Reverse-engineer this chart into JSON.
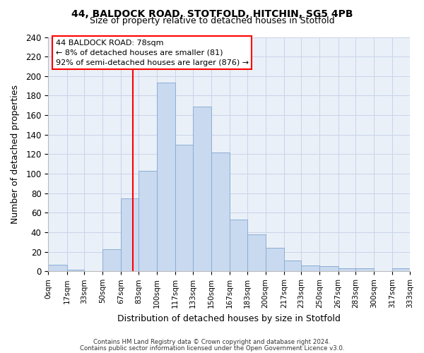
{
  "title_line1": "44, BALDOCK ROAD, STOTFOLD, HITCHIN, SG5 4PB",
  "title_line2": "Size of property relative to detached houses in Stotfold",
  "xlabel": "Distribution of detached houses by size in Stotfold",
  "ylabel": "Number of detached properties",
  "bin_labels": [
    "0sqm",
    "17sqm",
    "33sqm",
    "50sqm",
    "67sqm",
    "83sqm",
    "100sqm",
    "117sqm",
    "133sqm",
    "150sqm",
    "167sqm",
    "183sqm",
    "200sqm",
    "217sqm",
    "233sqm",
    "250sqm",
    "267sqm",
    "283sqm",
    "300sqm",
    "317sqm",
    "333sqm"
  ],
  "bin_edges": [
    0,
    17,
    33,
    50,
    67,
    83,
    100,
    117,
    133,
    150,
    167,
    183,
    200,
    217,
    233,
    250,
    267,
    283,
    300,
    317,
    333
  ],
  "bar_heights": [
    7,
    2,
    0,
    23,
    75,
    103,
    193,
    130,
    169,
    122,
    53,
    38,
    24,
    11,
    6,
    5,
    3,
    3,
    0,
    3
  ],
  "bar_color": "#c9d9ef",
  "bar_edge_color": "#8aaed4",
  "property_line_x": 78,
  "ylim": [
    0,
    240
  ],
  "yticks": [
    0,
    20,
    40,
    60,
    80,
    100,
    120,
    140,
    160,
    180,
    200,
    220,
    240
  ],
  "annotation_title": "44 BALDOCK ROAD: 78sqm",
  "annotation_line1": "← 8% of detached houses are smaller (81)",
  "annotation_line2": "92% of semi-detached houses are larger (876) →",
  "footer_line1": "Contains HM Land Registry data © Crown copyright and database right 2024.",
  "footer_line2": "Contains public sector information licensed under the Open Government Licence v3.0.",
  "background_color": "#ffffff",
  "plot_bg_color": "#eaf0f8",
  "grid_color": "#c8d4e8"
}
